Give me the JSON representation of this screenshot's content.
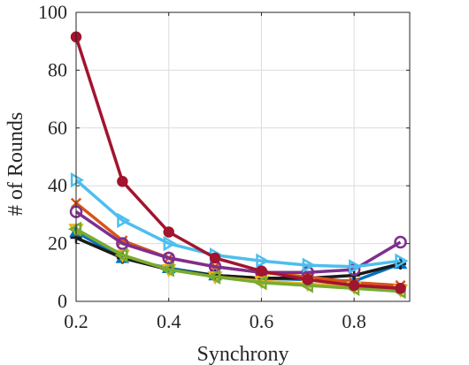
{
  "chart_data": {
    "type": "line",
    "title": "",
    "xlabel": "Synchrony",
    "ylabel": "# of Rounds",
    "xlim": [
      0.2,
      0.92
    ],
    "ylim": [
      0,
      100
    ],
    "x_ticks": [
      0.2,
      0.4,
      0.6,
      0.8
    ],
    "x_tick_labels": [
      "0.2",
      "0.4",
      "0.6",
      "0.8"
    ],
    "y_ticks": [
      0,
      20,
      40,
      60,
      80,
      100
    ],
    "y_tick_labels": [
      "0",
      "20",
      "40",
      "60",
      "80",
      "100"
    ],
    "grid": true,
    "legend": "none",
    "x": [
      0.2,
      0.3,
      0.4,
      0.5,
      0.6,
      0.7,
      0.8,
      0.9
    ],
    "series": [
      {
        "color": "#0072BD",
        "marker": "triangle-up",
        "values": [
          24,
          15,
          11.5,
          9,
          8,
          7.5,
          7,
          13
        ]
      },
      {
        "color": "#1a1a1a",
        "marker": "plus",
        "values": [
          22,
          15,
          11,
          9,
          8,
          8,
          9,
          13
        ]
      },
      {
        "color": "#D95319",
        "marker": "x",
        "values": [
          34,
          21,
          15,
          12,
          10,
          8.5,
          6.5,
          5.5
        ]
      },
      {
        "color": "#7E2F8E",
        "marker": "circle",
        "values": [
          31,
          20,
          15,
          12,
          10,
          10,
          11,
          20.5
        ]
      },
      {
        "color": "#4DBEEE",
        "marker": "triangle-right",
        "values": [
          42,
          28,
          20,
          16,
          14,
          12.5,
          12,
          14
        ]
      },
      {
        "color": "#EDB120",
        "marker": "triangle-down",
        "values": [
          25,
          16,
          11,
          8.5,
          7,
          6,
          5,
          4
        ]
      },
      {
        "color": "#77AC30",
        "marker": "triangle-left",
        "values": [
          25,
          16,
          11,
          8.5,
          6.5,
          5.5,
          4.5,
          3.5
        ]
      },
      {
        "color": "#A2142F",
        "marker": "filled-circle",
        "values": [
          91.5,
          41.5,
          24,
          15,
          10.5,
          7.5,
          5.5,
          4.5
        ]
      }
    ]
  }
}
